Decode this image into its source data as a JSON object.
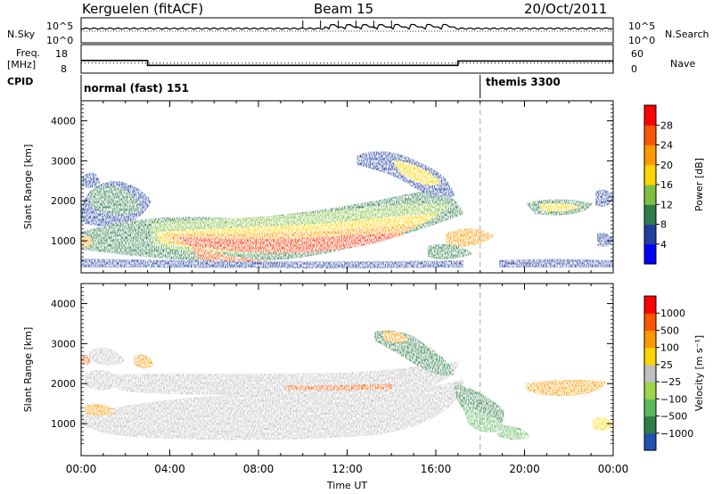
{
  "header": {
    "station": "Kerguelen (fitACF)",
    "beam": "Beam 15",
    "date": "20/Oct/2011"
  },
  "strip_labels": {
    "nsky": "N.Sky",
    "nsky_ticks": [
      "10^5",
      "10^0"
    ],
    "nsearch": "N.Search",
    "nsearch_ticks": [
      "10^5",
      "10^0"
    ],
    "freq": "Freq.",
    "freq_unit": "[MHz]",
    "freq_ticks": [
      "18",
      "8"
    ],
    "nave": "Nave",
    "nave_ticks": [
      "60",
      "0"
    ],
    "cpid": "CPID"
  },
  "cpid_modes": [
    {
      "label": "normal (fast) 151",
      "start_hour": 0
    },
    {
      "label": "themis 3300",
      "start_hour": 18
    }
  ],
  "x_axis": {
    "label": "Time UT",
    "ticks": [
      "00:00",
      "04:00",
      "08:00",
      "12:00",
      "16:00",
      "20:00",
      "00:00"
    ]
  },
  "y_axis": {
    "label": "Slant Range [km]",
    "ticks": [
      "1000",
      "2000",
      "3000",
      "4000"
    ]
  },
  "power_colorbar": {
    "label": "Power [dB]",
    "ticks": [
      "28",
      "24",
      "20",
      "16",
      "12",
      "8",
      "4"
    ],
    "colors": [
      "#0000ff",
      "#1e3ea0",
      "#2e7d4a",
      "#7fbf3f",
      "#ffd500",
      "#ff9900",
      "#ff5500",
      "#ff0000"
    ]
  },
  "velocity_colorbar": {
    "label": "Velocity [m s⁻¹]",
    "ticks": [
      "1000",
      "500",
      "100",
      "25",
      "−25",
      "−100",
      "−500",
      "−1000"
    ],
    "colors": [
      "#2050b0",
      "#2e7d4a",
      "#5cb85c",
      "#9cd64a",
      "#c0c0c0",
      "#ffd500",
      "#ff9900",
      "#ff5500",
      "#ff0000"
    ]
  },
  "chart_data": {
    "type": "heatmap",
    "x_range_hours": [
      0,
      24
    ],
    "y_range_km": [
      200,
      4500
    ],
    "frequency_mhz": [
      {
        "start_hour": 0,
        "end_hour": 3,
        "value": 12.2
      },
      {
        "start_hour": 3,
        "end_hour": 17,
        "value": 10.3
      },
      {
        "start_hour": 17,
        "end_hour": 24,
        "value": 12.0
      }
    ],
    "mode_change_hour": 18
  }
}
